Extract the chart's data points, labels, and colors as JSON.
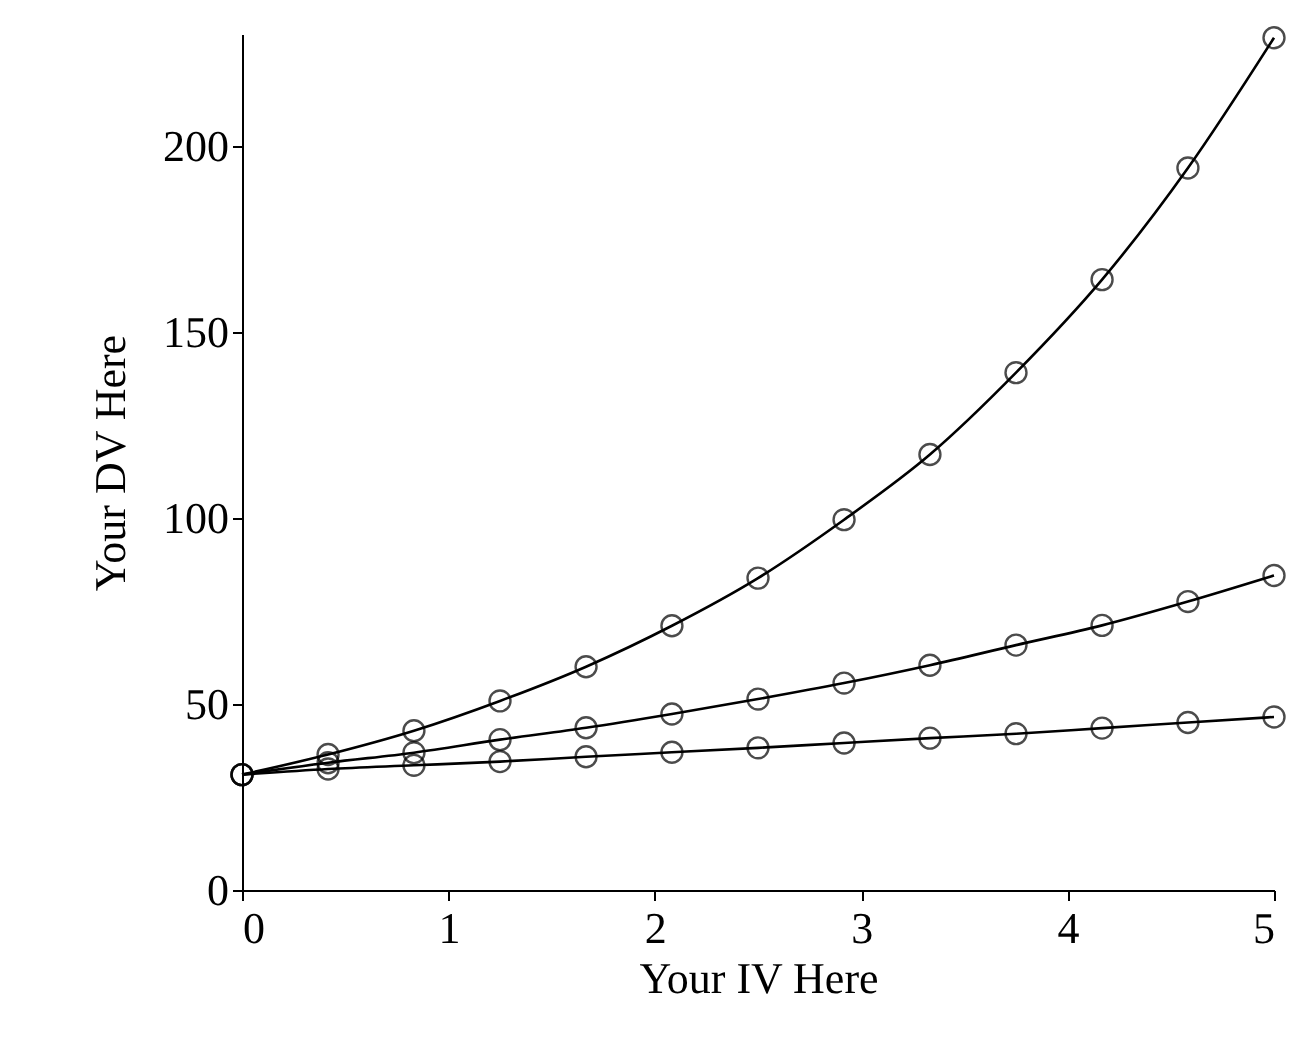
{
  "chart_data": {
    "type": "line",
    "xlabel": "Your IV Here",
    "ylabel": "Your DV Here",
    "x": [
      0,
      0.417,
      0.833,
      1.25,
      1.667,
      2.083,
      2.5,
      2.917,
      3.333,
      3.75,
      4.167,
      4.583,
      5
    ],
    "series": [
      {
        "color": "#000000",
        "values": [
          31,
          36.4,
          42.8,
          50.8,
          60,
          71,
          83.8,
          99.5,
          117,
          139,
          164,
          194,
          229
        ]
      },
      {
        "color": "#000000",
        "values": [
          31,
          34.2,
          36.9,
          40.4,
          43.6,
          47.3,
          51.3,
          55.6,
          60.4,
          65.8,
          71.1,
          77.5,
          84.5
        ]
      },
      {
        "color": "#000000",
        "values": [
          31,
          32.5,
          33.5,
          34.5,
          35.8,
          37,
          38.2,
          39.5,
          40.8,
          42,
          43.5,
          45,
          46.5
        ]
      }
    ],
    "xlim": [
      0,
      5
    ],
    "xticks": [
      0,
      1,
      2,
      3,
      4,
      5
    ],
    "ylim": [
      0,
      230
    ],
    "yticks": [
      0,
      50,
      100,
      150,
      200
    ],
    "grid": false,
    "marker": "circle",
    "line_style": "solid"
  }
}
